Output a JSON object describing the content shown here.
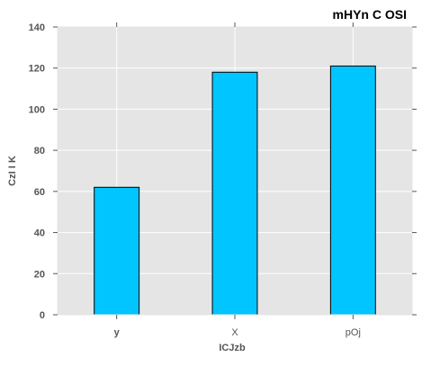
{
  "chart_data": {
    "type": "bar",
    "title": "mHYn C OSI",
    "xlabel": "ICJzb",
    "ylabel": "CzI I K",
    "categories": [
      "y",
      "X",
      "pOj"
    ],
    "values": [
      62,
      118,
      121
    ],
    "ylim": [
      0,
      140
    ],
    "yticks": [
      0,
      20,
      40,
      60,
      80,
      100,
      120,
      140
    ],
    "grid": true,
    "legend": "none",
    "colors": {
      "bar_fill": "#00c5ff",
      "bar_edge": "#000000",
      "plot_background": "#e5e5e5",
      "grid": "#ffffff",
      "text": "#555555",
      "title": "#000000"
    }
  }
}
